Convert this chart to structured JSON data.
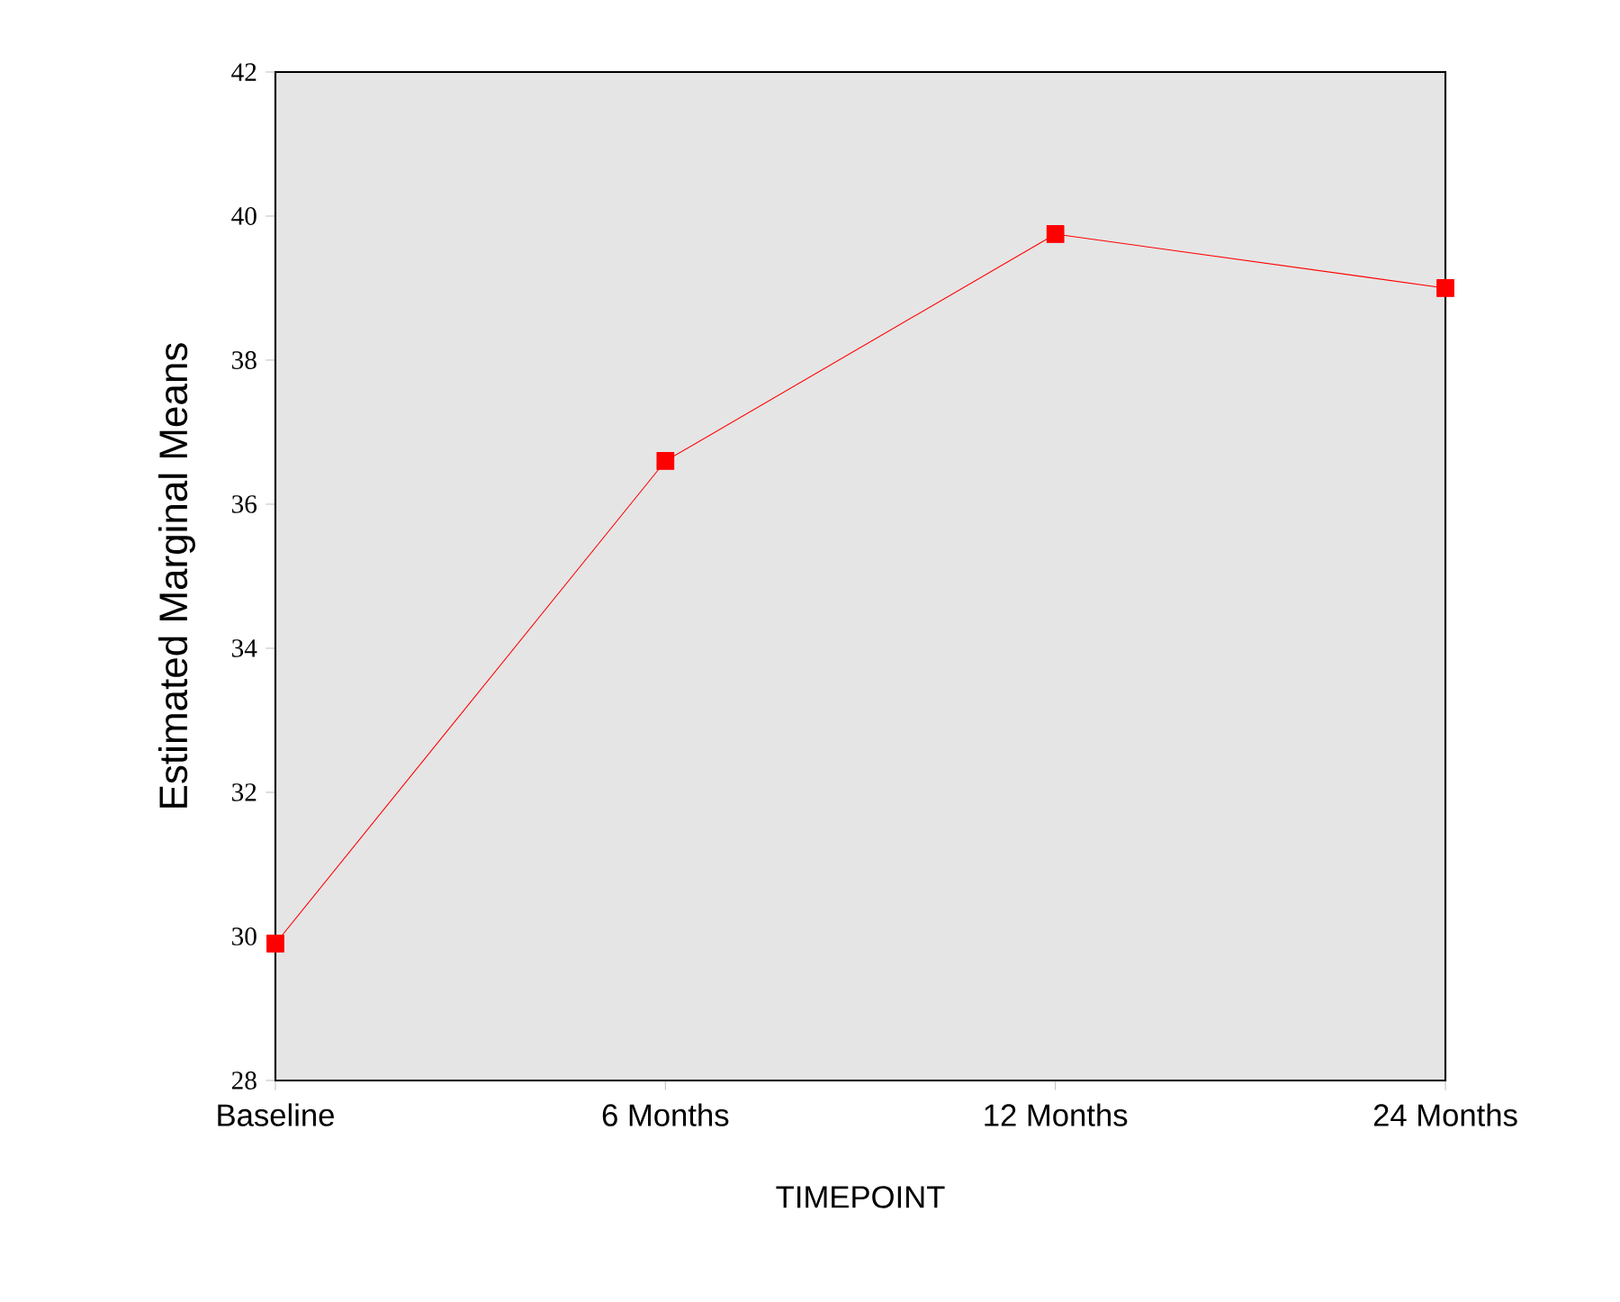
{
  "chart_data": {
    "type": "line",
    "xlabel": "TIMEPOINT",
    "ylabel": "Estimated Marginal Means",
    "categories": [
      "Baseline",
      "6 Months",
      "12 Months",
      "24 Months"
    ],
    "series": [
      {
        "color": "#ff0000",
        "values": [
          29.9,
          36.6,
          39.75,
          39.0
        ]
      }
    ],
    "ylim": [
      28,
      42
    ],
    "yticks": [
      28,
      30,
      32,
      34,
      36,
      38,
      40,
      42
    ],
    "marker": "square",
    "line_style": "solid",
    "grid": false
  }
}
